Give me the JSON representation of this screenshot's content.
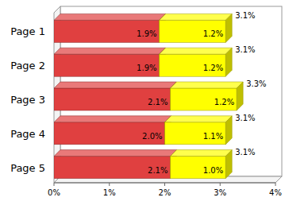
{
  "chart_data": {
    "type": "bar",
    "orientation": "horizontal",
    "stacked": true,
    "data_labels": true,
    "grid": false,
    "categories": [
      "Page 1",
      "Page 2",
      "Page 3",
      "Page 4",
      "Page 5"
    ],
    "series": [
      {
        "color": "#e04040",
        "values": [
          1.9,
          1.9,
          2.1,
          2.0,
          2.1
        ],
        "value_labels": [
          "1.9%",
          "1.9%",
          "2.1%",
          "2.0%",
          "2.1%"
        ]
      },
      {
        "color": "#ffff00",
        "values": [
          1.2,
          1.2,
          1.2,
          1.1,
          1.0
        ],
        "value_labels": [
          "1.2%",
          "1.2%",
          "1.2%",
          "1.1%",
          "1.0%"
        ]
      }
    ],
    "totals": [
      3.1,
      3.1,
      3.3,
      3.1,
      3.1
    ],
    "total_labels": [
      "3.1%",
      "3.1%",
      "3.3%",
      "3.1%",
      "3.1%"
    ],
    "xlim": [
      0,
      4
    ],
    "xticks": [
      {
        "value": 0,
        "label": "0%"
      },
      {
        "value": 1,
        "label": "1%"
      },
      {
        "value": 2,
        "label": "2%"
      },
      {
        "value": 3,
        "label": "3%"
      },
      {
        "value": 4,
        "label": "4%"
      }
    ]
  }
}
